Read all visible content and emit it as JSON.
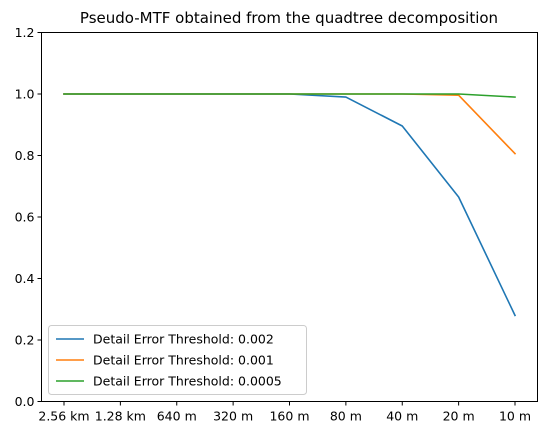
{
  "chart_data": {
    "type": "line",
    "title": "Pseudo-MTF obtained from the quadtree decomposition",
    "xlabel": "",
    "ylabel": "",
    "categories": [
      "2.56 km",
      "1.28 km",
      "640 m",
      "320 m",
      "160 m",
      "80 m",
      "40 m",
      "20 m",
      "10 m"
    ],
    "ylim": [
      0,
      1.2
    ],
    "yticks": [
      "0.0",
      "0.2",
      "0.4",
      "0.6",
      "0.8",
      "1.0",
      "1.2"
    ],
    "grid": false,
    "legend_position": "lower-left",
    "series": [
      {
        "name": "Detail Error Threshold: 0.002",
        "color": "#1f77b4",
        "values": [
          1.0,
          1.0,
          1.0,
          1.0,
          1.0,
          0.99,
          0.896,
          0.665,
          0.28
        ]
      },
      {
        "name": "Detail Error Threshold: 0.001",
        "color": "#ff7f0e",
        "values": [
          1.0,
          1.0,
          1.0,
          1.0,
          1.0,
          1.0,
          1.0,
          0.996,
          0.806
        ]
      },
      {
        "name": "Detail Error Threshold: 0.0005",
        "color": "#2ca02c",
        "values": [
          1.0,
          1.0,
          1.0,
          1.0,
          1.0,
          1.0,
          1.0,
          1.0,
          0.99
        ]
      }
    ]
  }
}
